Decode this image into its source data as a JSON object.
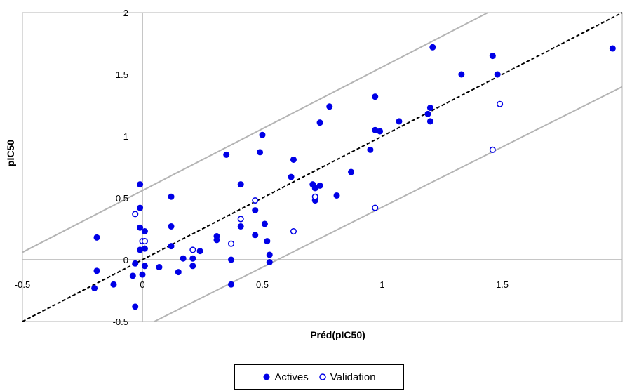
{
  "chart_data": {
    "type": "scatter",
    "xlabel": "Préd(pIC50)",
    "ylabel": "pIC50",
    "xlim": [
      -0.5,
      2.0
    ],
    "ylim": [
      -0.5,
      2.0
    ],
    "x_ticks": [
      "-0.5",
      "0",
      "0.5",
      "1",
      "1.5"
    ],
    "y_ticks": [
      "-0.5",
      "0",
      "0.5",
      "1",
      "1.5",
      "2"
    ],
    "grid": false,
    "legend_position": "bottom",
    "colors": {
      "actives": "#0000e6",
      "validation": "#0000e6",
      "band": "#b4b4b4",
      "identity": "#000000"
    },
    "reference_lines": [
      {
        "style": "dashed",
        "color": "#000000",
        "from": [
          -0.5,
          -0.5
        ],
        "to": [
          2.0,
          2.0
        ]
      },
      {
        "style": "solid",
        "color": "#b4b4b4",
        "from": [
          -0.5,
          0.06
        ],
        "to": [
          1.44,
          2.0
        ]
      },
      {
        "style": "solid",
        "color": "#b4b4b4",
        "from": [
          0.05,
          -0.5
        ],
        "to": [
          2.0,
          1.4
        ]
      }
    ],
    "series": [
      {
        "name": "Actives",
        "marker": "filled-circle",
        "points": [
          [
            -0.19,
            0.18
          ],
          [
            -0.19,
            -0.09
          ],
          [
            -0.2,
            -0.23
          ],
          [
            -0.12,
            -0.2
          ],
          [
            -0.04,
            -0.13
          ],
          [
            -0.03,
            -0.38
          ],
          [
            -0.03,
            -0.03
          ],
          [
            -0.01,
            0.08
          ],
          [
            -0.01,
            0.26
          ],
          [
            -0.01,
            0.42
          ],
          [
            -0.01,
            0.61
          ],
          [
            0.0,
            -0.12
          ],
          [
            0.01,
            -0.05
          ],
          [
            0.01,
            0.09
          ],
          [
            0.01,
            0.23
          ],
          [
            0.07,
            -0.06
          ],
          [
            0.12,
            0.27
          ],
          [
            0.12,
            0.11
          ],
          [
            0.12,
            0.51
          ],
          [
            0.15,
            -0.1
          ],
          [
            0.17,
            0.01
          ],
          [
            0.21,
            -0.05
          ],
          [
            0.21,
            0.01
          ],
          [
            0.24,
            0.07
          ],
          [
            0.31,
            0.19
          ],
          [
            0.31,
            0.16
          ],
          [
            0.35,
            0.85
          ],
          [
            0.37,
            0.0
          ],
          [
            0.37,
            -0.2
          ],
          [
            0.41,
            0.27
          ],
          [
            0.41,
            0.61
          ],
          [
            0.47,
            0.2
          ],
          [
            0.47,
            0.4
          ],
          [
            0.49,
            0.87
          ],
          [
            0.5,
            1.01
          ],
          [
            0.51,
            0.29
          ],
          [
            0.52,
            0.15
          ],
          [
            0.53,
            0.04
          ],
          [
            0.53,
            -0.02
          ],
          [
            0.62,
            0.67
          ],
          [
            0.63,
            0.81
          ],
          [
            0.71,
            0.61
          ],
          [
            0.72,
            0.58
          ],
          [
            0.72,
            0.48
          ],
          [
            0.74,
            0.6
          ],
          [
            0.74,
            1.11
          ],
          [
            0.78,
            1.24
          ],
          [
            0.81,
            0.52
          ],
          [
            0.87,
            0.71
          ],
          [
            0.95,
            0.89
          ],
          [
            0.97,
            1.05
          ],
          [
            0.97,
            1.32
          ],
          [
            0.99,
            1.04
          ],
          [
            1.07,
            1.12
          ],
          [
            1.19,
            1.18
          ],
          [
            1.2,
            1.23
          ],
          [
            1.2,
            1.12
          ],
          [
            1.21,
            1.72
          ],
          [
            1.33,
            1.5
          ],
          [
            1.46,
            1.65
          ],
          [
            1.48,
            1.5
          ],
          [
            1.96,
            1.71
          ]
        ]
      },
      {
        "name": "Validation",
        "marker": "hollow-circle",
        "points": [
          [
            -0.03,
            0.37
          ],
          [
            0.0,
            0.15
          ],
          [
            0.01,
            0.15
          ],
          [
            0.21,
            0.08
          ],
          [
            0.37,
            0.13
          ],
          [
            0.41,
            0.33
          ],
          [
            0.47,
            0.48
          ],
          [
            0.63,
            0.23
          ],
          [
            0.72,
            0.51
          ],
          [
            0.97,
            0.42
          ],
          [
            1.46,
            0.89
          ],
          [
            1.49,
            1.26
          ]
        ]
      }
    ]
  }
}
